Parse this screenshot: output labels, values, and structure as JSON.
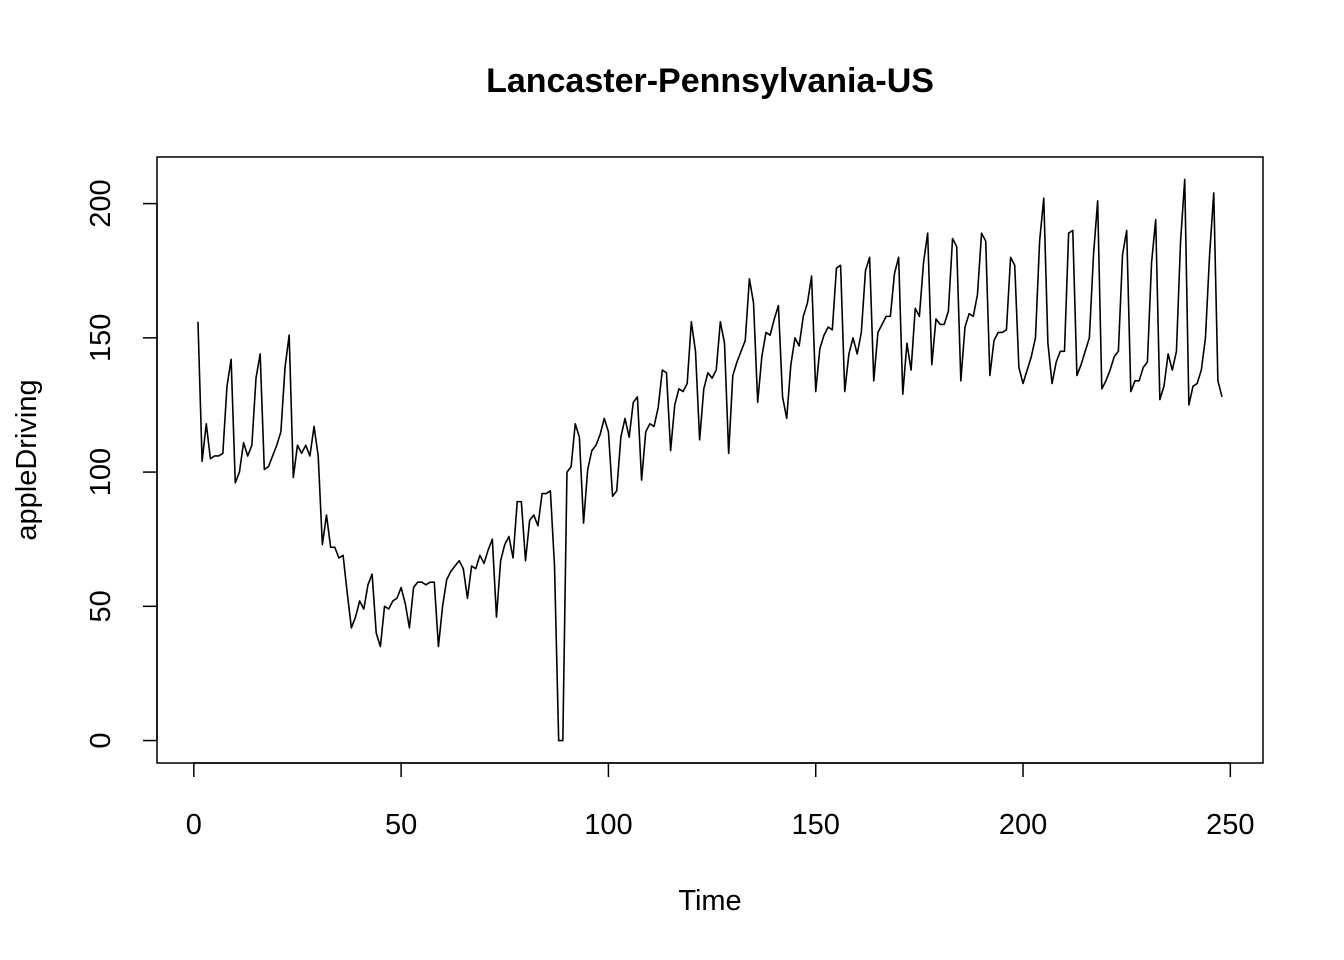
{
  "chart_data": {
    "type": "line",
    "title": "Lancaster-Pennsylvania-US",
    "x_label": "Time",
    "y_label": "appleDriving",
    "x": [
      1,
      2,
      3,
      4,
      5,
      6,
      7,
      8,
      9,
      10,
      11,
      12,
      13,
      14,
      15,
      16,
      17,
      18,
      19,
      20,
      21,
      22,
      23,
      24,
      25,
      26,
      27,
      28,
      29,
      30,
      31,
      32,
      33,
      34,
      35,
      36,
      37,
      38,
      39,
      40,
      41,
      42,
      43,
      44,
      45,
      46,
      47,
      48,
      49,
      50,
      51,
      52,
      53,
      54,
      55,
      56,
      57,
      58,
      59,
      60,
      61,
      62,
      63,
      64,
      65,
      66,
      67,
      68,
      69,
      70,
      71,
      72,
      73,
      74,
      75,
      76,
      77,
      78,
      79,
      80,
      81,
      82,
      83,
      84,
      85,
      86,
      87,
      88,
      89,
      90,
      91,
      92,
      93,
      94,
      95,
      96,
      97,
      98,
      99,
      100,
      101,
      102,
      103,
      104,
      105,
      106,
      107,
      108,
      109,
      110,
      111,
      112,
      113,
      114,
      115,
      116,
      117,
      118,
      119,
      120,
      121,
      122,
      123,
      124,
      125,
      126,
      127,
      128,
      129,
      130,
      131,
      132,
      133,
      134,
      135,
      136,
      137,
      138,
      139,
      140,
      141,
      142,
      143,
      144,
      145,
      146,
      147,
      148,
      149,
      150,
      151,
      152,
      153,
      154,
      155,
      156,
      157,
      158,
      159,
      160,
      161,
      162,
      163,
      164,
      165,
      166,
      167,
      168,
      169,
      170,
      171,
      172,
      173,
      174,
      175,
      176,
      177,
      178,
      179,
      180,
      181,
      182,
      183,
      184,
      185,
      186,
      187,
      188,
      189,
      190,
      191,
      192,
      193,
      194,
      195,
      196,
      197,
      198,
      199,
      200,
      201,
      202,
      203,
      204,
      205,
      206,
      207,
      208,
      209,
      210,
      211,
      212,
      213,
      214,
      215,
      216,
      217,
      218,
      219,
      220,
      221,
      222,
      223,
      224,
      225,
      226,
      227,
      228,
      229,
      230,
      231,
      232,
      233,
      234,
      235,
      236,
      237,
      238,
      239,
      240,
      241,
      242,
      243,
      244,
      245,
      246,
      247,
      248
    ],
    "series": [
      {
        "name": "appleDriving",
        "color": "#000000",
        "values": [
          156,
          104,
          118,
          105,
          106,
          106,
          107,
          132,
          142,
          96,
          100,
          111,
          106,
          110,
          135,
          144,
          101,
          102,
          106,
          110,
          115,
          139,
          151,
          98,
          110,
          107,
          110,
          106,
          117,
          106,
          73,
          84,
          72,
          72,
          68,
          69,
          55,
          42,
          46,
          52,
          49,
          58,
          62,
          40,
          35,
          50,
          49,
          52,
          53,
          57,
          51,
          42,
          57,
          59,
          59,
          58,
          59,
          59,
          35,
          50,
          60,
          63,
          65,
          67,
          64,
          53,
          65,
          64,
          69,
          66,
          71,
          75,
          46,
          67,
          73,
          76,
          68,
          89,
          89,
          67,
          82,
          84,
          80,
          92,
          92,
          93,
          65,
          0,
          0,
          100,
          102,
          118,
          113,
          81,
          101,
          108,
          110,
          114,
          120,
          115,
          91,
          93,
          113,
          120,
          113,
          126,
          128,
          97,
          115,
          118,
          117,
          124,
          138,
          137,
          108,
          125,
          131,
          130,
          133,
          156,
          145,
          112,
          131,
          137,
          135,
          138,
          156,
          148,
          107,
          136,
          141,
          145,
          149,
          172,
          163,
          126,
          143,
          152,
          151,
          157,
          162,
          128,
          120,
          140,
          150,
          147,
          158,
          163,
          173,
          130,
          146,
          151,
          154,
          153,
          176,
          177,
          130,
          144,
          150,
          144,
          152,
          175,
          180,
          134,
          152,
          155,
          158,
          158,
          174,
          180,
          129,
          148,
          138,
          161,
          158,
          178,
          189,
          140,
          157,
          155,
          155,
          160,
          187,
          184,
          134,
          154,
          159,
          158,
          166,
          189,
          186,
          136,
          149,
          152,
          152,
          153,
          180,
          177,
          139,
          133,
          138,
          143,
          150,
          186,
          202,
          148,
          133,
          141,
          145,
          145,
          189,
          190,
          136,
          140,
          145,
          150,
          181,
          201,
          131,
          134,
          138,
          143,
          145,
          181,
          190,
          130,
          134,
          134,
          139,
          141,
          178,
          194,
          127,
          132,
          144,
          138,
          145,
          186,
          209,
          125,
          132,
          133,
          138,
          150,
          181,
          204,
          134,
          128
        ]
      }
    ],
    "xlim": [
      -8.88,
      257.88
    ],
    "xticks": [
      0,
      50,
      100,
      150,
      200,
      250
    ],
    "ylim": [
      -8.36,
      217.36
    ],
    "yticks": [
      0,
      50,
      100,
      150,
      200
    ]
  }
}
